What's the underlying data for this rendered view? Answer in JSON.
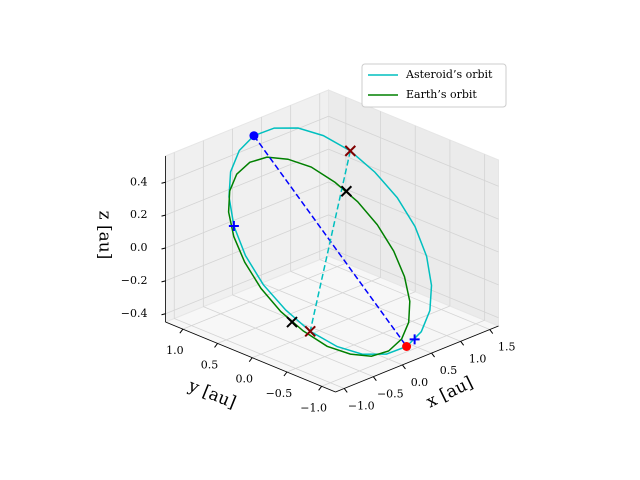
{
  "chart_data": {
    "type": "line3d",
    "xlabel": "x [au]",
    "ylabel": "y [au]",
    "zlabel": "z [au]",
    "xlim": [
      -1.15,
      1.65
    ],
    "ylim": [
      -1.2,
      1.25
    ],
    "zlim": [
      -0.45,
      0.56
    ],
    "xticks": [
      {
        "value": -1.0,
        "label": "−1.0"
      },
      {
        "value": -0.5,
        "label": "−0.5"
      },
      {
        "value": 0.0,
        "label": "0.0"
      },
      {
        "value": 0.5,
        "label": "0.5"
      },
      {
        "value": 1.0,
        "label": "1.0"
      },
      {
        "value": 1.5,
        "label": "1.5"
      }
    ],
    "yticks": [
      {
        "value": 1.0,
        "label": "1.0"
      },
      {
        "value": 0.5,
        "label": "0.5"
      },
      {
        "value": 0.0,
        "label": "0.0"
      },
      {
        "value": -0.5,
        "label": "−0.5"
      },
      {
        "value": -1.0,
        "label": "−1.0"
      }
    ],
    "zticks": [
      {
        "value": -0.4,
        "label": "−0.4"
      },
      {
        "value": -0.2,
        "label": "−0.2"
      },
      {
        "value": 0.0,
        "label": "0.0"
      },
      {
        "value": 0.2,
        "label": "0.2"
      },
      {
        "value": 0.4,
        "label": "0.4"
      }
    ],
    "grid": true,
    "legend": "upper right",
    "series": [
      {
        "name": "Asteroid’s orbit",
        "color": "#00bfbf",
        "x": [
          1.4,
          1.36,
          1.25,
          1.06,
          0.83,
          0.55,
          0.25,
          -0.05,
          -0.33,
          -0.56,
          -0.75,
          -0.86,
          -0.9,
          -0.86,
          -0.75,
          -0.56,
          -0.33,
          -0.05,
          0.25,
          0.55,
          0.83,
          1.06,
          1.25,
          1.36
        ],
        "y": [
          0.05,
          0.34,
          0.6,
          0.83,
          1.0,
          1.11,
          1.15,
          1.11,
          1.0,
          0.83,
          0.6,
          0.34,
          0.05,
          -0.24,
          -0.5,
          -0.73,
          -0.9,
          -1.01,
          -1.05,
          -1.01,
          -0.9,
          -0.73,
          -0.5,
          -0.24
        ],
        "z": [
          0.15,
          0.26,
          0.36,
          0.44,
          0.49,
          0.51,
          0.5,
          0.46,
          0.39,
          0.3,
          0.19,
          0.07,
          -0.05,
          -0.16,
          -0.26,
          -0.34,
          -0.39,
          -0.41,
          -0.4,
          -0.36,
          -0.29,
          -0.2,
          -0.09,
          0.03
        ]
      },
      {
        "name": "Earth’s orbit",
        "color": "#008000",
        "x": [
          1,
          0.97,
          0.87,
          0.71,
          0.5,
          0.26,
          0,
          -0.26,
          -0.5,
          -0.71,
          -0.87,
          -0.97,
          -1,
          -0.97,
          -0.87,
          -0.71,
          -0.5,
          -0.26,
          0,
          0.26,
          0.5,
          0.71,
          0.87,
          0.97
        ],
        "y": [
          0,
          0.26,
          0.5,
          0.71,
          0.87,
          0.97,
          1,
          0.97,
          0.87,
          0.71,
          0.5,
          0.26,
          0,
          -0.26,
          -0.5,
          -0.71,
          -0.87,
          -0.97,
          -1,
          -0.97,
          -0.87,
          -0.71,
          -0.5,
          -0.26
        ],
        "z": [
          0.05,
          0.15,
          0.24,
          0.32,
          0.37,
          0.4,
          0.4,
          0.37,
          0.32,
          0.25,
          0.16,
          0.06,
          -0.05,
          -0.15,
          -0.24,
          -0.32,
          -0.37,
          -0.4,
          -0.4,
          -0.37,
          -0.32,
          -0.25,
          -0.16,
          -0.06
        ]
      }
    ],
    "lines": [
      {
        "color": "#0000ff",
        "style": "dashed",
        "x": [
          0.25,
          0.25
        ],
        "y": [
          1.15,
          -1.05
        ],
        "z": [
          0.5,
          -0.4
        ]
      },
      {
        "color": "#00bfbf",
        "style": "dashed",
        "x": [
          1.25,
          -0.75
        ],
        "y": [
          0.6,
          -0.5
        ],
        "z": [
          0.36,
          -0.26
        ]
      }
    ],
    "markers": [
      {
        "marker": "o",
        "color": "#0000ff",
        "x": 0.25,
        "y": 1.15,
        "z": 0.5
      },
      {
        "marker": "o",
        "color": "#ff0000",
        "x": 0.25,
        "y": -1.05,
        "z": -0.4
      },
      {
        "marker": "+",
        "color": "#0000ff",
        "x": -0.75,
        "y": 0.6,
        "z": 0.19
      },
      {
        "marker": "+",
        "color": "#0000ff",
        "x": 0.4,
        "y": -1.04,
        "z": -0.38
      },
      {
        "marker": "x",
        "color": "#800000",
        "x": 1.25,
        "y": 0.6,
        "z": 0.36
      },
      {
        "marker": "x",
        "color": "#000000",
        "x": 0.92,
        "y": 0.38,
        "z": 0.2
      },
      {
        "marker": "x",
        "color": "#000000",
        "x": -0.92,
        "y": -0.38,
        "z": -0.2
      },
      {
        "marker": "x",
        "color": "#800000",
        "x": -0.75,
        "y": -0.5,
        "z": -0.26
      }
    ]
  }
}
